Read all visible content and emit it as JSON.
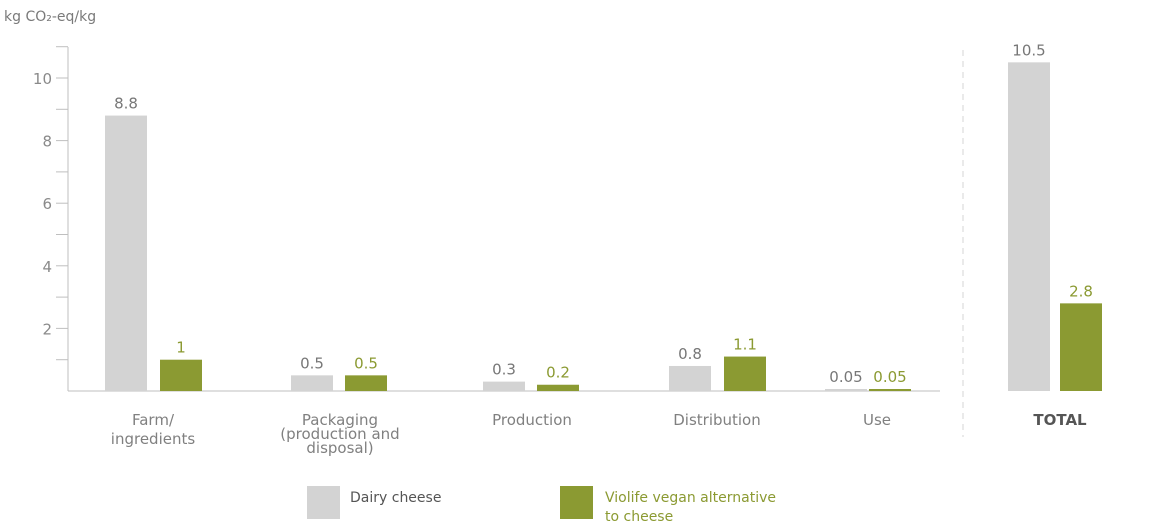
{
  "chart_data": {
    "type": "bar",
    "ylabel": "kg CO₂-eq/kg",
    "ylim": [
      0,
      11
    ],
    "yticks": [
      2,
      4,
      6,
      8,
      10
    ],
    "grid": false,
    "legend_position": "bottom",
    "categories": [
      [
        "Farm/",
        "ingredients"
      ],
      [
        "Packaging",
        "(production and",
        "disposal)"
      ],
      [
        "Production"
      ],
      [
        "Distribution"
      ],
      [
        "Use"
      ],
      [
        "TOTAL"
      ]
    ],
    "series": [
      {
        "name": "Dairy cheese",
        "color": "#d3d3d3",
        "label_color": "#777777",
        "values": [
          8.8,
          0.5,
          0.3,
          0.8,
          0.05,
          10.5
        ],
        "labels": [
          "8.8",
          "0.5",
          "0.3",
          "0.8",
          "0.05",
          "10.5"
        ]
      },
      {
        "name": "Violife vegan alternative to cheese",
        "legend_lines": [
          "Violife vegan alternative",
          "to cheese"
        ],
        "color": "#8b9a32",
        "label_color": "#8b9a32",
        "values": [
          1,
          0.5,
          0.2,
          1.1,
          0.05,
          2.8
        ],
        "labels": [
          "1",
          "0.5",
          "0.2",
          "1.1",
          "0.05",
          "2.8"
        ]
      }
    ]
  }
}
